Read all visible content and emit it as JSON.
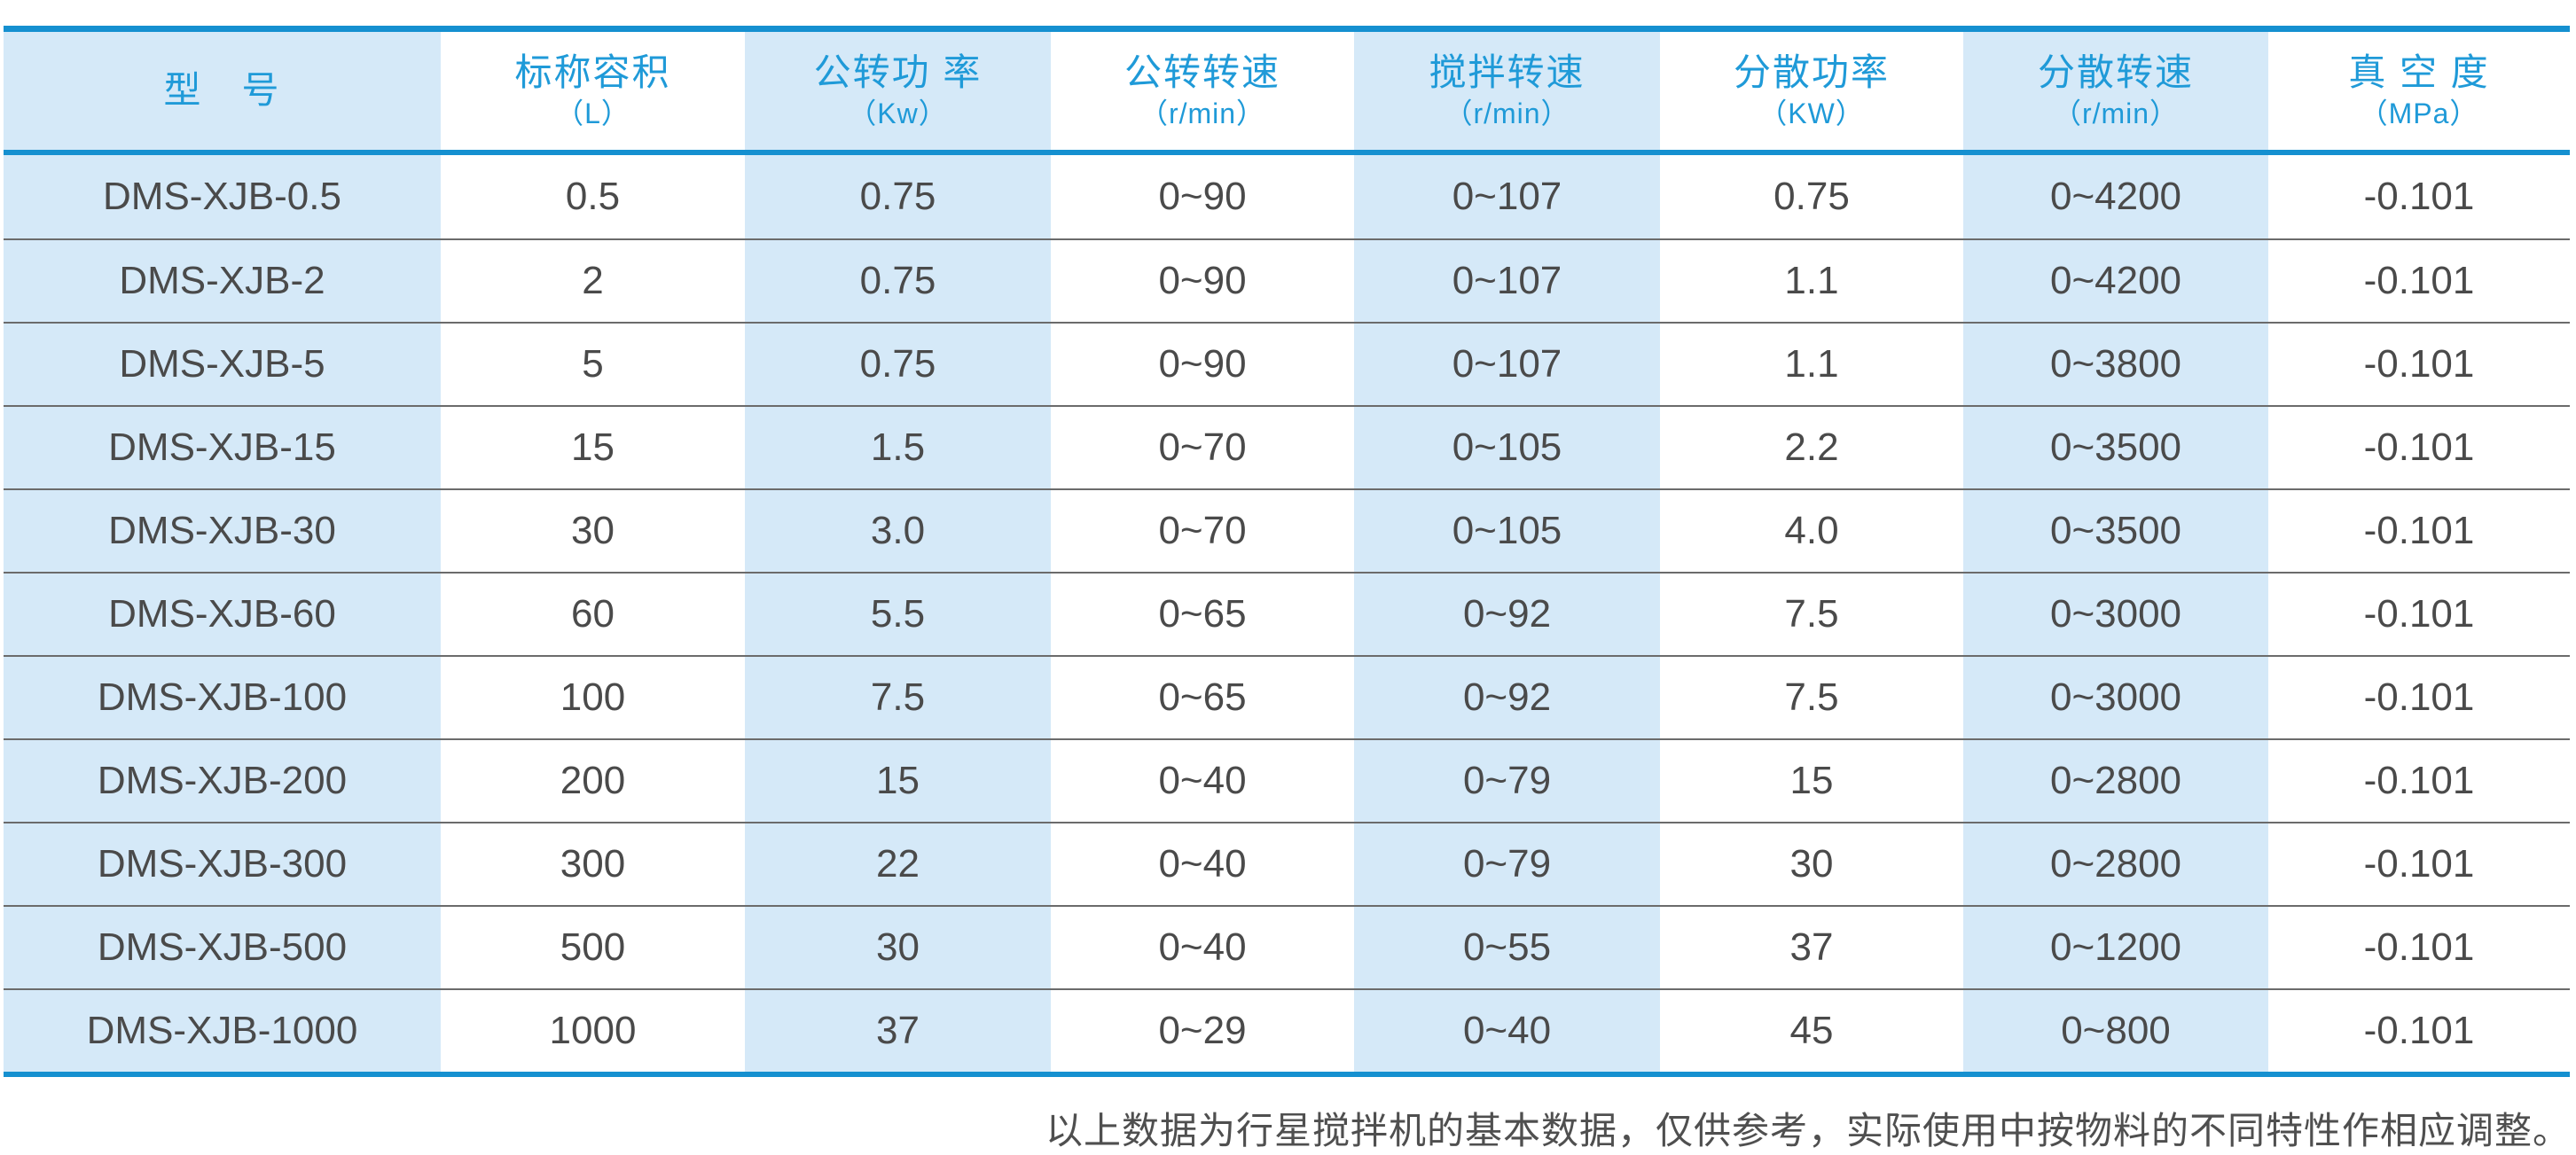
{
  "colors": {
    "accent_line_blue": "#1590d0",
    "header_text_blue": "#1f9ad8",
    "column_tint_blue": "#d5e9f8",
    "data_text_gray": "#4a4a4a",
    "row_separator_gray": "#6b6b6b",
    "page_background": "#ffffff"
  },
  "table": {
    "columns": [
      {
        "key": "model",
        "title": "型　号",
        "unit": ""
      },
      {
        "key": "nominal-volume",
        "title": "标称容积",
        "unit": "（L）"
      },
      {
        "key": "revolution-power",
        "title": "公转功 率",
        "unit": "（Kw）"
      },
      {
        "key": "revolution-speed",
        "title": "公转转速",
        "unit": "（r/min）"
      },
      {
        "key": "stirring-speed",
        "title": "搅拌转速",
        "unit": "（r/min）"
      },
      {
        "key": "dispersion-power",
        "title": "分散功率",
        "unit": "（KW）"
      },
      {
        "key": "dispersion-speed",
        "title": "分散转速",
        "unit": "（r/min）"
      },
      {
        "key": "vacuum-degree",
        "title": "真 空 度",
        "unit": "（MPa）"
      }
    ],
    "rows": [
      [
        "DMS-XJB-0.5",
        "0.5",
        "0.75",
        "0~90",
        "0~107",
        "0.75",
        "0~4200",
        "-0.101"
      ],
      [
        "DMS-XJB-2",
        "2",
        "0.75",
        "0~90",
        "0~107",
        "1.1",
        "0~4200",
        "-0.101"
      ],
      [
        "DMS-XJB-5",
        "5",
        "0.75",
        "0~90",
        "0~107",
        "1.1",
        "0~3800",
        "-0.101"
      ],
      [
        "DMS-XJB-15",
        "15",
        "1.5",
        "0~70",
        "0~105",
        "2.2",
        "0~3500",
        "-0.101"
      ],
      [
        "DMS-XJB-30",
        "30",
        "3.0",
        "0~70",
        "0~105",
        "4.0",
        "0~3500",
        "-0.101"
      ],
      [
        "DMS-XJB-60",
        "60",
        "5.5",
        "0~65",
        "0~92",
        "7.5",
        "0~3000",
        "-0.101"
      ],
      [
        "DMS-XJB-100",
        "100",
        "7.5",
        "0~65",
        "0~92",
        "7.5",
        "0~3000",
        "-0.101"
      ],
      [
        "DMS-XJB-200",
        "200",
        "15",
        "0~40",
        "0~79",
        "15",
        "0~2800",
        "-0.101"
      ],
      [
        "DMS-XJB-300",
        "300",
        "22",
        "0~40",
        "0~79",
        "30",
        "0~2800",
        "-0.101"
      ],
      [
        "DMS-XJB-500",
        "500",
        "30",
        "0~40",
        "0~55",
        "37",
        "0~1200",
        "-0.101"
      ],
      [
        "DMS-XJB-1000",
        "1000",
        "37",
        "0~29",
        "0~40",
        "45",
        "0~800",
        "-0.101"
      ]
    ]
  },
  "footnote": {
    "text": "以上数据为行星搅拌机的基本数据，仅供参考，实际使用中按物料的不同特性作相应调整。"
  }
}
